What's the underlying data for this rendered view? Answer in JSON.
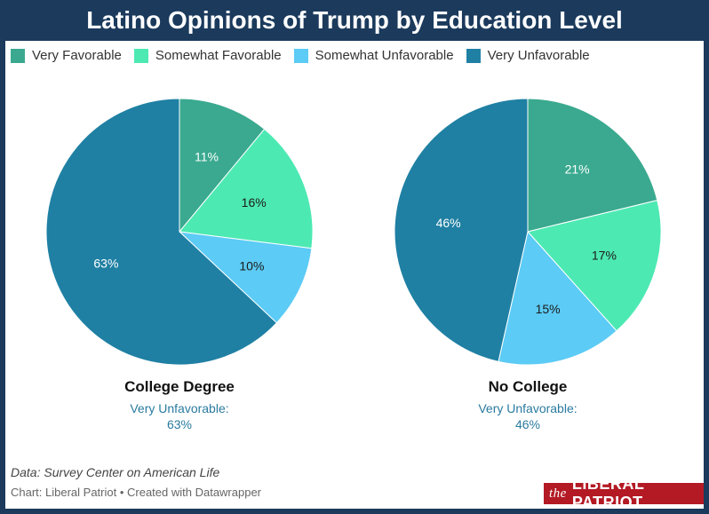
{
  "title": "Latino Opinions of Trump by Education Level",
  "legend": [
    {
      "label": "Very Favorable",
      "color": "#3aa98f"
    },
    {
      "label": "Somewhat Favorable",
      "color": "#4de9b3"
    },
    {
      "label": "Somewhat Unfavorable",
      "color": "#5ccbf5"
    },
    {
      "label": "Very Unfavorable",
      "color": "#1f80a3"
    }
  ],
  "chart_data": [
    {
      "type": "pie",
      "title": "College Degree",
      "subtitle_label": "Very Unfavorable:",
      "subtitle_value": "63%",
      "slices": [
        {
          "label": "Very Favorable",
          "value": 11
        },
        {
          "label": "Somewhat Favorable",
          "value": 16
        },
        {
          "label": "Somewhat Unfavorable",
          "value": 10
        },
        {
          "label": "Very Unfavorable",
          "value": 63
        }
      ]
    },
    {
      "type": "pie",
      "title": "No College",
      "subtitle_label": "Very Unfavorable:",
      "subtitle_value": "46%",
      "slices": [
        {
          "label": "Very Favorable",
          "value": 21
        },
        {
          "label": "Somewhat Favorable",
          "value": 17
        },
        {
          "label": "Somewhat Unfavorable",
          "value": 15
        },
        {
          "label": "Very Unfavorable",
          "value": 46
        }
      ]
    }
  ],
  "source": "Data: Survey Center on American Life",
  "credit": "Chart: Liberal Patriot • Created with Datawrapper",
  "logo": {
    "prefix": "the",
    "name": "LIBERAL PATRIOT"
  }
}
